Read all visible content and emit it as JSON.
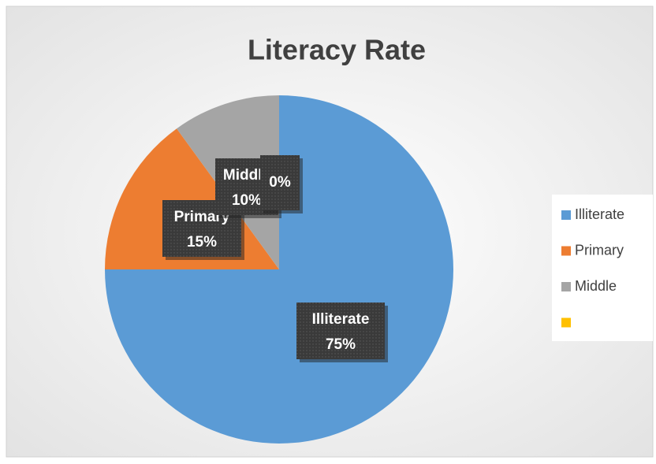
{
  "chart_data": {
    "type": "pie",
    "title": "Literacy Rate",
    "categories": [
      "Illiterate",
      "Primary",
      "Middle",
      null
    ],
    "values": [
      75,
      15,
      10,
      0
    ],
    "value_labels": [
      "75%",
      "15%",
      "10%",
      "0%"
    ],
    "colors": [
      "#5b9bd5",
      "#ed7d31",
      "#a5a5a5",
      "#ffc000"
    ],
    "legend": "right"
  }
}
